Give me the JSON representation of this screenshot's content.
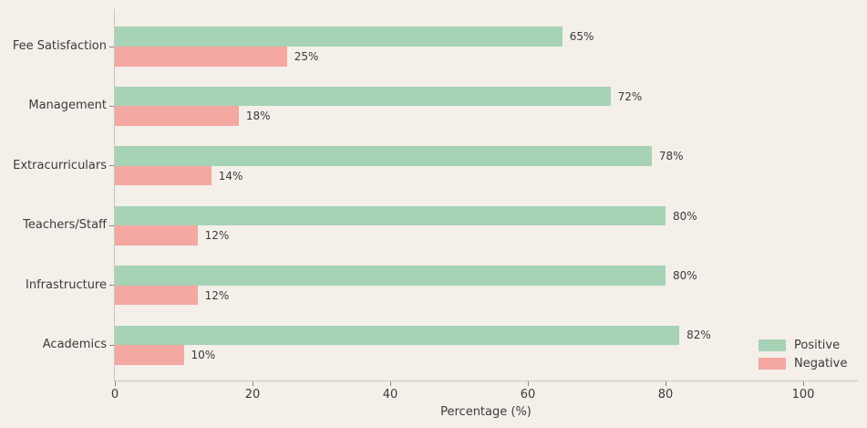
{
  "chart_data": {
    "type": "bar",
    "orientation": "horizontal",
    "title": "",
    "xlabel": "Percentage (%)",
    "ylabel": "",
    "categories": [
      "Fee Satisfaction",
      "Management",
      "Extracurriculars",
      "Teachers/Staff",
      "Infrastructure",
      "Academics"
    ],
    "series": [
      {
        "name": "Positive",
        "color": "#a6d3b5",
        "values": [
          65,
          72,
          78,
          80,
          80,
          82
        ]
      },
      {
        "name": "Negative",
        "color": "#f5a7a2",
        "values": [
          25,
          18,
          14,
          12,
          12,
          10
        ]
      }
    ],
    "value_label_format": "{v}%",
    "x_ticks": [
      0,
      20,
      40,
      60,
      80,
      100
    ],
    "xlim": [
      0,
      108
    ],
    "grid": false,
    "legend": {
      "position": "lower right",
      "entries": [
        "Positive",
        "Negative"
      ]
    },
    "colors": {
      "background": "#f4efe9",
      "text": "#3b3b3b",
      "spine": "#c9c5c0",
      "positive": "#a6d3b5",
      "negative": "#f5a7a2"
    }
  }
}
